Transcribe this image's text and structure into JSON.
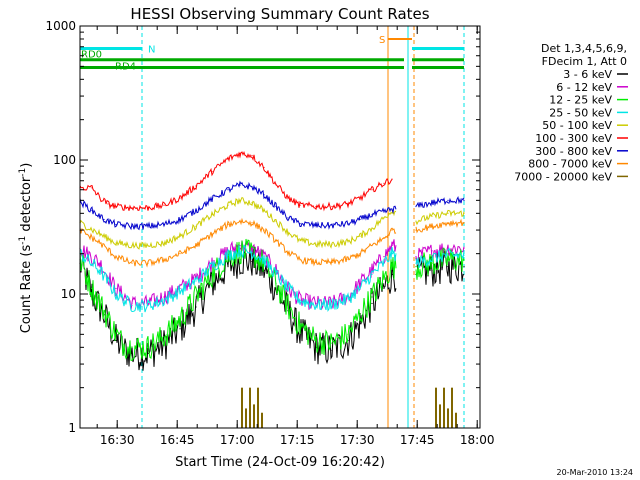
{
  "chart_data": {
    "type": "line",
    "title": "HESSI Observing Summary Count Rates",
    "xlabel": "Start Time (24-Oct-09 16:20:42)",
    "ylabel": "Count Rate (s⁻¹ detector⁻¹)",
    "ylabel_parts": {
      "main": "Count Rate (s",
      "sup1": "-1",
      "mid": " detector",
      "sup2": "-1",
      "end": ")"
    },
    "yscale": "log",
    "ylim": [
      1,
      1000
    ],
    "xlim_minutes": [
      0,
      100
    ],
    "x_ticks": [
      "16:30",
      "16:45",
      "17:00",
      "17:15",
      "17:30",
      "17:45",
      "18:00"
    ],
    "x_tick_minutes": [
      9.3,
      24.3,
      39.3,
      54.3,
      69.3,
      84.3,
      99.3
    ],
    "y_ticks": [
      "1",
      "10",
      "100",
      "1000"
    ],
    "y_tick_values": [
      1,
      10,
      100,
      1000
    ],
    "legend_header": [
      "Det 1,3,4,5,6,9,",
      "FDecim 1, Att 0"
    ],
    "legend_position": "right",
    "footer_date": "20-Mar-2010 13:24",
    "x_min_per_tick": 15,
    "series": [
      {
        "name": "3 - 6 keV",
        "color": "#000000",
        "x": [
          0,
          3,
          6,
          9,
          11,
          13,
          17,
          21,
          25,
          29,
          33,
          37,
          40,
          43,
          46,
          49,
          52,
          55,
          59,
          63,
          67,
          70,
          73,
          76,
          78,
          84,
          88,
          92,
          96
        ],
        "y": [
          17,
          10,
          7,
          4.5,
          3.8,
          3.6,
          3.6,
          4.2,
          5.5,
          8,
          12,
          16,
          18,
          17.5,
          15,
          11,
          7.5,
          5.2,
          4,
          3.8,
          4.5,
          6,
          8.5,
          11,
          14,
          14,
          15,
          16,
          16
        ]
      },
      {
        "name": "6 - 12 keV",
        "color": "#cc00cc",
        "x": [
          0,
          5,
          9,
          13,
          17,
          21,
          25,
          29,
          33,
          37,
          40,
          43,
          46,
          49,
          52,
          55,
          59,
          63,
          67,
          70,
          73,
          76,
          78,
          84,
          88,
          92,
          96
        ],
        "y": [
          22,
          17,
          11,
          8.5,
          8.5,
          9.5,
          11,
          13,
          17,
          21,
          23,
          22,
          19,
          15,
          11,
          9,
          8.5,
          8.5,
          9.5,
          12,
          15,
          19,
          23,
          19,
          21,
          22,
          22
        ]
      },
      {
        "name": "12 - 25 keV",
        "color": "#00ee00",
        "x": [
          0,
          3,
          6,
          9,
          11,
          13,
          17,
          21,
          25,
          29,
          33,
          37,
          40,
          43,
          46,
          49,
          52,
          55,
          59,
          63,
          67,
          70,
          73,
          76,
          78,
          84,
          88,
          92,
          96
        ],
        "y": [
          18,
          11,
          7.5,
          5,
          4.2,
          4,
          4,
          4.8,
          6.5,
          9.5,
          14,
          19,
          21,
          20,
          17,
          12,
          8,
          5.8,
          4.5,
          4.3,
          5,
          7,
          9.5,
          13,
          16,
          16,
          17,
          18,
          18
        ]
      },
      {
        "name": "25 - 50 keV",
        "color": "#00e5e5",
        "x": [
          0,
          5,
          9,
          13,
          17,
          21,
          25,
          29,
          33,
          37,
          40,
          43,
          46,
          49,
          52,
          55,
          59,
          63,
          67,
          70,
          73,
          76,
          78,
          84,
          88,
          92,
          96
        ],
        "y": [
          20,
          15,
          10,
          8.2,
          8.2,
          9,
          10.5,
          12.5,
          16,
          19.5,
          21,
          20.5,
          18,
          14,
          11,
          9,
          8.3,
          8.3,
          9.2,
          11,
          14,
          17,
          20,
          17,
          18.5,
          19.5,
          19.5
        ]
      },
      {
        "name": "50 - 100 keV",
        "color": "#cccc00",
        "x": [
          0,
          5,
          9,
          13,
          17,
          21,
          25,
          29,
          33,
          37,
          40,
          43,
          46,
          49,
          52,
          55,
          59,
          63,
          67,
          70,
          73,
          76,
          78,
          84,
          88,
          92,
          96
        ],
        "y": [
          34,
          28,
          24,
          23,
          23,
          24,
          27,
          32,
          39,
          46,
          50,
          48,
          42,
          35,
          29,
          25,
          23.5,
          23.5,
          24.5,
          27,
          31,
          37,
          42,
          35,
          38,
          40,
          40
        ]
      },
      {
        "name": "100 - 300 keV",
        "color": "#ff0000",
        "x": [
          0,
          3,
          5,
          7,
          9,
          13,
          17,
          21,
          25,
          29,
          33,
          37,
          40,
          43,
          46,
          49,
          52,
          55,
          59,
          63,
          67,
          70,
          73,
          76,
          78
        ],
        "y": [
          62,
          62,
          52,
          47,
          45,
          44,
          44,
          46,
          52,
          64,
          82,
          102,
          112,
          108,
          88,
          66,
          52,
          46,
          45,
          45,
          47,
          52,
          60,
          67,
          72
        ]
      },
      {
        "name": "300 - 800 keV",
        "color": "#0000cc",
        "x": [
          0,
          3,
          6,
          9,
          13,
          17,
          21,
          25,
          29,
          33,
          37,
          40,
          43,
          46,
          49,
          52,
          55,
          59,
          63,
          67,
          70,
          73,
          76,
          78,
          84,
          88,
          92,
          96
        ],
        "y": [
          49,
          42,
          36,
          33,
          32,
          32,
          33,
          36,
          42,
          51,
          60,
          65,
          63,
          55,
          45,
          37,
          33.5,
          32.5,
          32.5,
          33.5,
          36,
          39,
          41,
          43,
          45,
          48,
          50,
          50
        ]
      },
      {
        "name": "800 - 7000 keV",
        "color": "#ff8800",
        "x": [
          0,
          5,
          9,
          13,
          17,
          21,
          25,
          29,
          33,
          37,
          40,
          43,
          46,
          49,
          52,
          55,
          59,
          63,
          67,
          70,
          73,
          76,
          78,
          84,
          88,
          92,
          96
        ],
        "y": [
          30,
          24,
          19,
          17,
          17,
          18,
          20,
          23,
          28,
          33,
          35,
          34,
          30,
          25,
          20.5,
          18,
          17.2,
          17.2,
          18.2,
          20,
          23,
          26,
          30,
          30,
          32,
          34,
          34
        ]
      },
      {
        "name": "7000 - 20000 keV",
        "color": "#806600",
        "x": [
          40.5,
          41.5,
          42.5,
          43.5,
          44.5,
          45.5,
          89,
          90,
          91,
          92,
          93,
          94
        ],
        "y": [
          2,
          1.4,
          2,
          1.5,
          2,
          1.3,
          2,
          1.5,
          2,
          1.4,
          2,
          1.3
        ]
      }
    ],
    "annotations": {
      "rd0": {
        "label": "RD0",
        "color": "#00aa00",
        "x_start": 0,
        "x_end": 81,
        "x_start2": 83,
        "x_end2": 96,
        "y": 560,
        "y2": 560
      },
      "rd4": {
        "label": "RD4",
        "color": "#00aa00",
        "x_start": 0,
        "x_end": 81,
        "x_start2": 83,
        "x_end2": 96,
        "y": 490,
        "y2": 490
      },
      "night": {
        "label": "N",
        "color": "#00e5e5",
        "bar_x": [
          0,
          15.5
        ],
        "bar_y": 680,
        "bar2_x": [
          83,
          96
        ],
        "bar2_y": 680,
        "night_edges_dashed": [
          15.5,
          83.5,
          96
        ]
      },
      "saa": {
        "label": "S",
        "color": "#ff8800",
        "bar_x": [
          77,
          83
        ],
        "bar_y": 800,
        "edge_solid": 77,
        "edge_dashed": 83.5
      },
      "cyan_solid_edges": [
        0,
        82
      ],
      "data_gaps": [
        [
          79,
          84
        ]
      ]
    }
  }
}
